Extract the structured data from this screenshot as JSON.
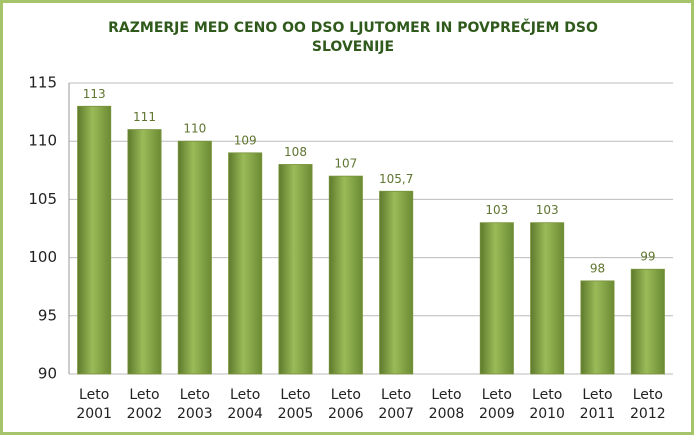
{
  "chart_data": {
    "type": "bar",
    "title": "RAZMERJE MED CENO OO DSO LJUTOMER IN POVPREČJEM DSO SLOVENIJE",
    "categories": [
      "Leto 2001",
      "Leto 2002",
      "Leto 2003",
      "Leto 2004",
      "Leto 2005",
      "Leto 2006",
      "Leto 2007",
      "Leto 2008",
      "Leto 2009",
      "Leto 2010",
      "Leto 2011",
      "Leto 2012"
    ],
    "values": [
      113,
      111,
      110,
      109,
      108,
      107,
      105.7,
      null,
      103,
      103,
      98,
      99
    ],
    "value_labels": [
      "113",
      "111",
      "110",
      "109",
      "108",
      "107",
      "105,7",
      null,
      "103",
      "103",
      "98",
      "99"
    ],
    "color": "#77933c",
    "ylim": [
      90,
      115
    ],
    "yticks": [
      90,
      95,
      100,
      105,
      110,
      115
    ],
    "grid": true
  }
}
